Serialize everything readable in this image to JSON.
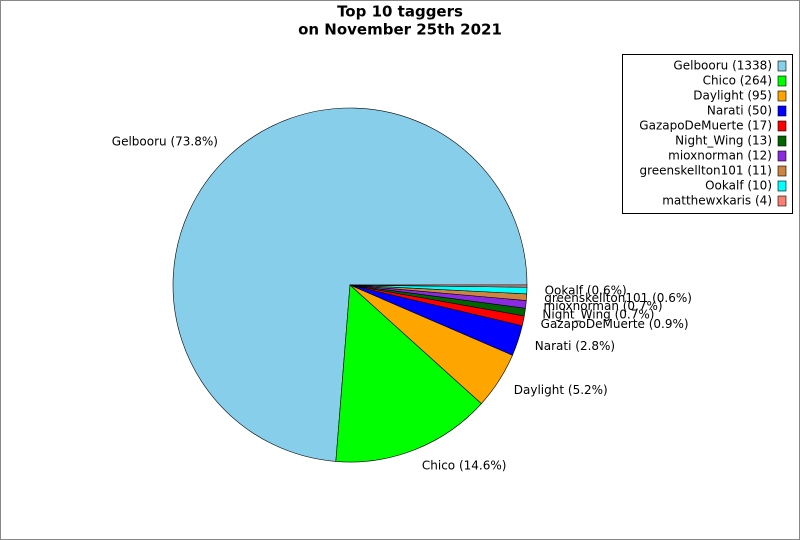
{
  "chart_data": {
    "type": "pie",
    "title": [
      "Top 10 taggers",
      "on November 25th 2021"
    ],
    "categories": [
      "Gelbooru",
      "Chico",
      "Daylight",
      "Narati",
      "GazapoDeMuerte",
      "Night_Wing",
      "mioxnorman",
      "greenskellton101",
      "Ookalf",
      "matthewxkaris"
    ],
    "values": [
      73.8,
      14.6,
      5.2,
      2.8,
      0.9,
      0.7,
      0.7,
      0.6,
      0.6,
      0.2
    ],
    "value_labels": [
      "Gelbooru (73.8%)",
      "Chico (14.6%)",
      "Daylight (5.2%)",
      "Narati (2.8%)",
      "GazapoDeMuerte (0.9%)",
      "Night_Wing (0.7%)",
      "mioxnorman (0.7%)",
      "greenskellton101 (0.6%)",
      "Ookalf (0.6%)",
      null
    ],
    "legend": [
      "Gelbooru (1338)",
      "Chico (264)",
      "Daylight (95)",
      "Narati (50)",
      "GazapoDeMuerte (17)",
      "Night_Wing (13)",
      "mioxnorman (12)",
      "greenskellton101 (11)",
      "Ookalf (10)",
      "matthewxkaris (4)"
    ],
    "colors": [
      "#87ceeb",
      "#00ff00",
      "#ffa500",
      "#0000ff",
      "#ff0000",
      "#006400",
      "#8a2be2",
      "#cd853f",
      "#00ffff",
      "#fa8072"
    ],
    "legend_position": "upper right"
  }
}
